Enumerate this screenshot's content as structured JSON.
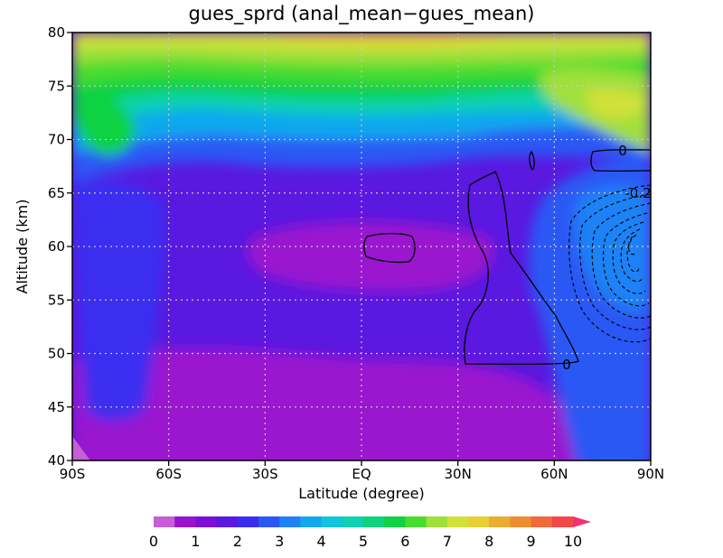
{
  "chart_data": {
    "type": "heatmap",
    "title": "gues_sprd (anal_mean−gues_mean)",
    "xlabel": "Latitude (degree)",
    "ylabel": "Altitude (km)",
    "xlim": [
      -90,
      90
    ],
    "ylim": [
      40,
      80
    ],
    "x_ticks": [
      -90,
      -60,
      -30,
      0,
      30,
      60,
      90
    ],
    "x_tick_labels": [
      "90S",
      "60S",
      "30S",
      "EQ",
      "30N",
      "60N",
      "90N"
    ],
    "y_ticks": [
      40,
      45,
      50,
      55,
      60,
      65,
      70,
      75,
      80
    ],
    "y_tick_labels": [
      "40",
      "45",
      "50",
      "55",
      "60",
      "65",
      "70",
      "75",
      "80"
    ],
    "grid": true,
    "grid_style": "dotted",
    "shading": {
      "variable": "gues_sprd",
      "levels": [
        0,
        0.5,
        1,
        1.5,
        2,
        2.5,
        3,
        3.5,
        4,
        4.5,
        5,
        5.5,
        6,
        6.5,
        7,
        7.5,
        8,
        8.5,
        9,
        9.5,
        10
      ],
      "colors": [
        "#c65ed6",
        "#9a14cf",
        "#7a10d8",
        "#5a18e0",
        "#3a2df0",
        "#2a58f5",
        "#1f82f5",
        "#10a8ee",
        "#10c6dc",
        "#10d2b0",
        "#10d27c",
        "#10d242",
        "#48dc2e",
        "#a0e03a",
        "#d2e03a",
        "#e6cf34",
        "#e8ae30",
        "#ec8e30",
        "#f06a3a",
        "#f24848",
        "#f4306e"
      ],
      "colorbar_tick_labels": [
        "0",
        "1",
        "2",
        "3",
        "4",
        "5",
        "6",
        "7",
        "8",
        "9",
        "10"
      ],
      "colorbar_extend": "max",
      "colorbar_position": "bottom",
      "field_keypoints": [
        {
          "lat": -90,
          "alt": 40,
          "value": 0.3
        },
        {
          "lat": -60,
          "alt": 45,
          "value": 1.2
        },
        {
          "lat": -30,
          "alt": 50,
          "value": 1.0
        },
        {
          "lat": 0,
          "alt": 43,
          "value": 1.5
        },
        {
          "lat": 10,
          "alt": 59,
          "value": 0.9
        },
        {
          "lat": -30,
          "alt": 60,
          "value": 1.8
        },
        {
          "lat": -75,
          "alt": 62,
          "value": 3.0
        },
        {
          "lat": 78,
          "alt": 60,
          "value": 3.2
        },
        {
          "lat": 0,
          "alt": 70,
          "value": 2.5
        },
        {
          "lat": -78,
          "alt": 72,
          "value": 5.5
        },
        {
          "lat": -78,
          "alt": 69,
          "value": 6.0
        },
        {
          "lat": 0,
          "alt": 78,
          "value": 6.5
        },
        {
          "lat": 0,
          "alt": 80,
          "value": 7.3
        },
        {
          "lat": 75,
          "alt": 78,
          "value": 6.8
        },
        {
          "lat": 75,
          "alt": 73,
          "value": 7.2
        }
      ]
    },
    "contours": {
      "variable": "anal_mean−gues_mean",
      "labels": [
        {
          "text": "0",
          "lat": 78,
          "alt": 69
        },
        {
          "text": "-0.2",
          "lat": 82,
          "alt": 64.8
        },
        {
          "text": "0",
          "lat": 59,
          "alt": 49
        }
      ],
      "note_levels": "solid = 0, dashed = negative"
    }
  }
}
